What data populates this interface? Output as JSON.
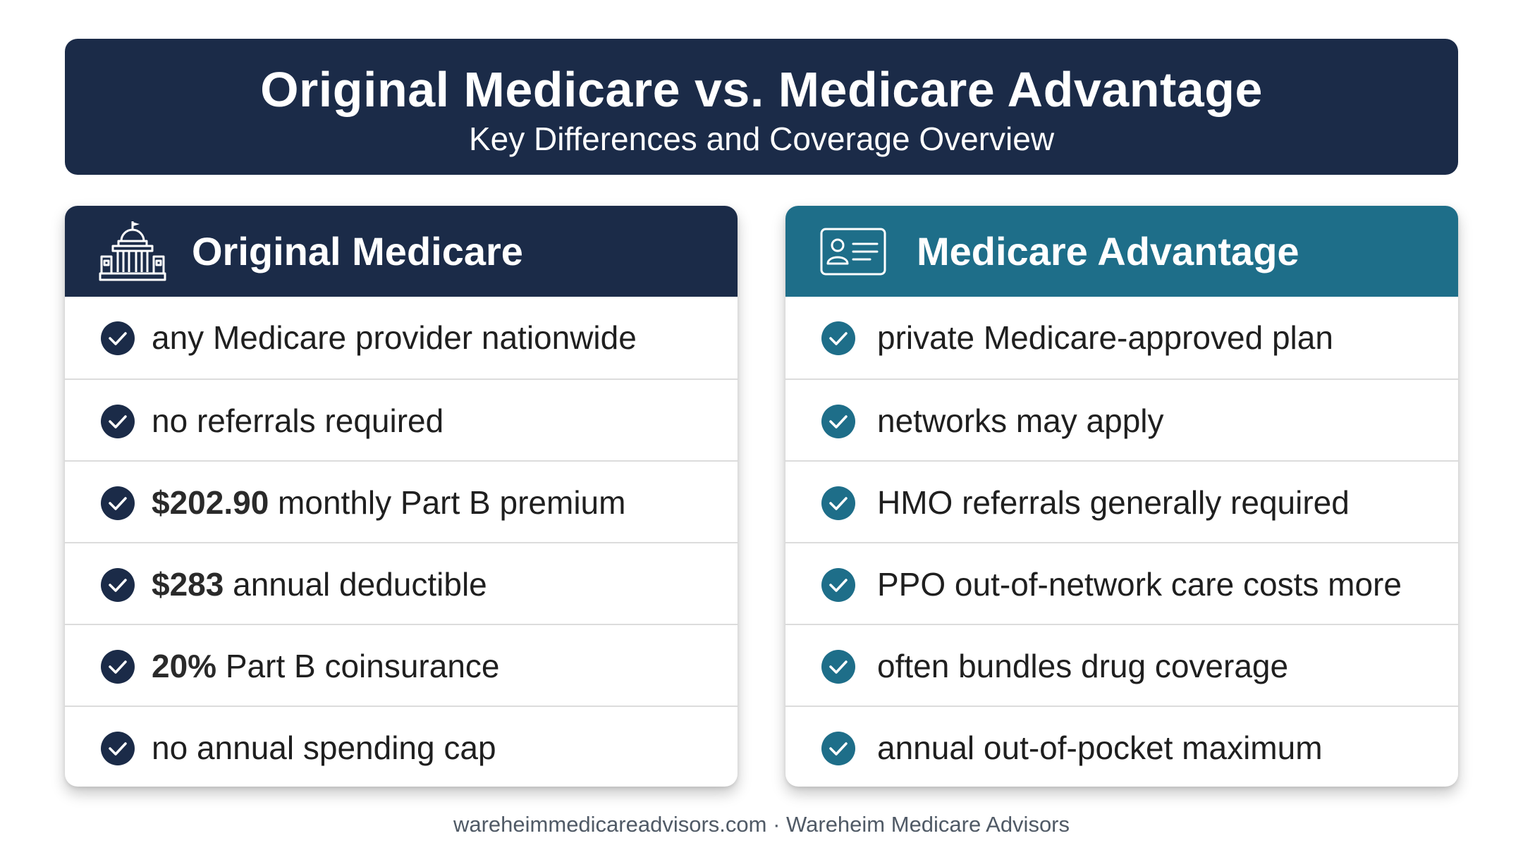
{
  "header": {
    "title": "Original Medicare vs. Medicare Advantage",
    "subtitle": "Key Differences and Coverage Overview"
  },
  "colors": {
    "navy": "#1b2b48",
    "teal": "#1e6e89",
    "check_navy": "#1b2b48",
    "check_teal": "#1e6e89"
  },
  "left_card": {
    "icon": "capitol-building-icon",
    "title": "Original Medicare",
    "items": [
      {
        "bold": "",
        "text": "any Medicare provider nationwide"
      },
      {
        "bold": "",
        "text": "no referrals required"
      },
      {
        "bold": "$202.90",
        "text": " monthly Part B premium"
      },
      {
        "bold": "$283",
        "text": " annual deductible"
      },
      {
        "bold": "20%",
        "text": " Part B coinsurance"
      },
      {
        "bold": "",
        "text": "no annual spending cap"
      }
    ]
  },
  "right_card": {
    "icon": "id-card-icon",
    "title": "Medicare Advantage",
    "items": [
      {
        "bold": "",
        "text": "private Medicare-approved plan"
      },
      {
        "bold": "",
        "text": "networks may apply"
      },
      {
        "bold": "",
        "text": "HMO referrals generally required"
      },
      {
        "bold": "",
        "text": "PPO out-of-network care costs more"
      },
      {
        "bold": "",
        "text": "often bundles drug coverage"
      },
      {
        "bold": "",
        "text": "annual out-of-pocket maximum"
      }
    ]
  },
  "footer": "wareheimmedicareadvisors.com · Wareheim Medicare Advisors"
}
